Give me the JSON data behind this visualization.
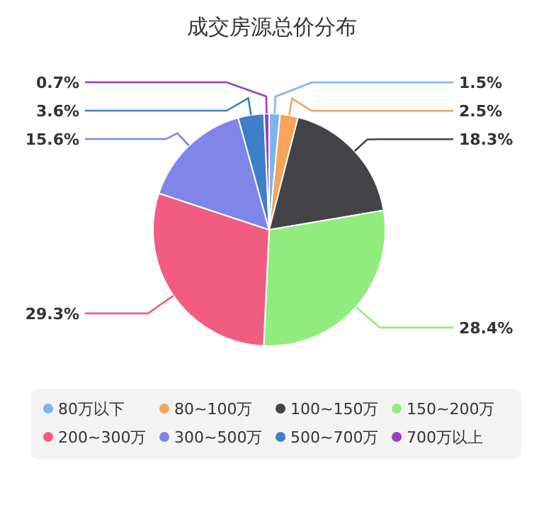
{
  "chart_data": {
    "type": "pie",
    "title": "成交房源总价分布",
    "categories": [
      "80万以下",
      "80~100万",
      "100~150万",
      "150~200万",
      "200~300万",
      "300~500万",
      "500~700万",
      "700万以上"
    ],
    "values": [
      1.5,
      2.5,
      18.3,
      28.4,
      29.3,
      15.6,
      3.6,
      0.7
    ],
    "value_labels": [
      "1.5%",
      "2.5%",
      "18.3%",
      "28.4%",
      "29.3%",
      "15.6%",
      "3.6%",
      "0.7%"
    ],
    "colors": [
      "#7cb5ec",
      "#f7a35c",
      "#434348",
      "#90ed7d",
      "#f15c80",
      "#8085e9",
      "#3d7fc9",
      "#9b3fc4"
    ],
    "legend": "bottom"
  }
}
